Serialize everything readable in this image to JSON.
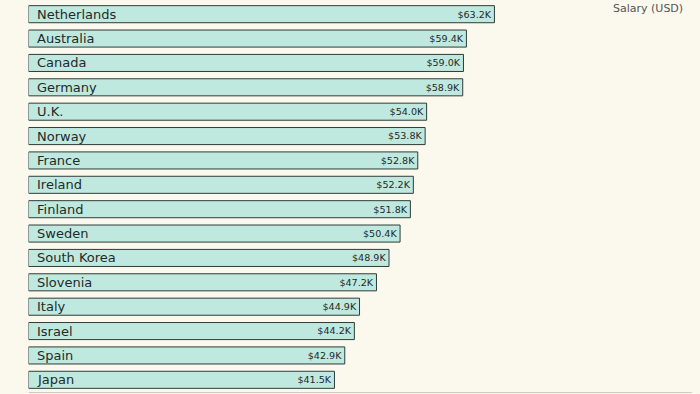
{
  "chart_data": {
    "type": "bar",
    "orientation": "horizontal",
    "subtitle": "Salary (USD)",
    "categories": [
      "Netherlands",
      "Australia",
      "Canada",
      "Germany",
      "U.K.",
      "Norway",
      "France",
      "Ireland",
      "Finland",
      "Sweden",
      "South Korea",
      "Slovenia",
      "Italy",
      "Israel",
      "Spain",
      "Japan"
    ],
    "values": [
      63.2,
      59.4,
      59.0,
      58.9,
      54.0,
      53.8,
      52.8,
      52.2,
      51.8,
      50.4,
      48.9,
      47.2,
      44.9,
      44.2,
      42.9,
      41.5
    ],
    "value_labels": [
      "$63.2K",
      "$59.4K",
      "$59.0K",
      "$58.9K",
      "$54.0K",
      "$53.8K",
      "$52.8K",
      "$52.2K",
      "$51.8K",
      "$50.4K",
      "$48.9K",
      "$47.2K",
      "$44.9K",
      "$44.2K",
      "$42.9K",
      "$41.5K"
    ],
    "color": "#bfe9df",
    "xlim": [
      0,
      90
    ],
    "data_labels": true,
    "grid": false
  }
}
